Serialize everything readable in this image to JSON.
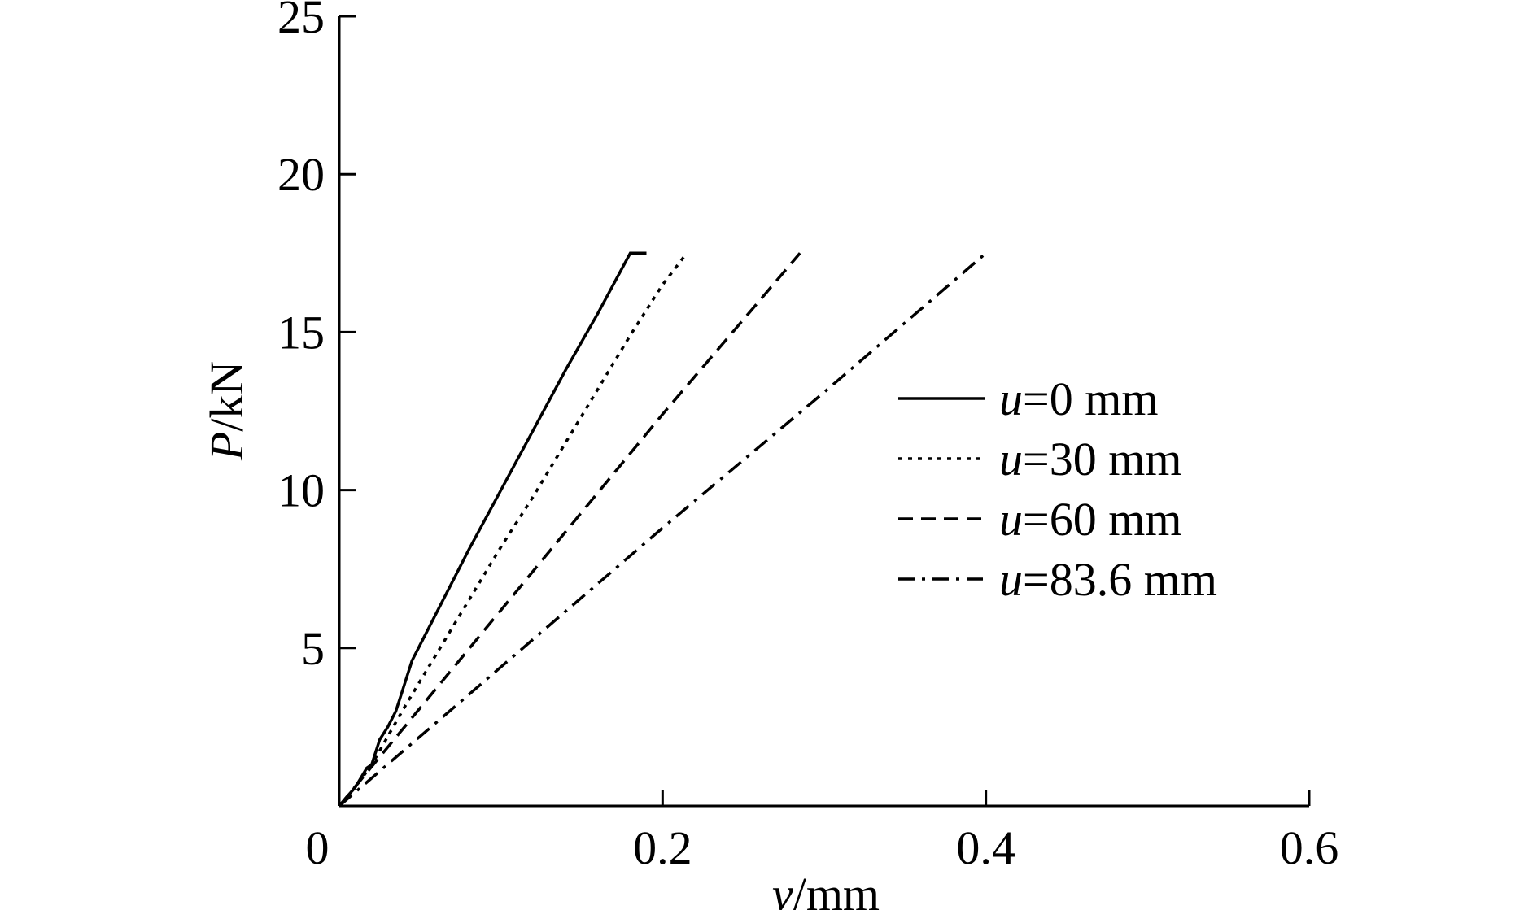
{
  "chart_data": {
    "type": "line",
    "title": "",
    "xlabel_var": "v",
    "xlabel_unit": "/mm",
    "ylabel_var": "P",
    "ylabel_unit": "/kN",
    "xlim": [
      0,
      0.6
    ],
    "ylim": [
      0,
      25
    ],
    "xticks": [
      0,
      0.2,
      0.4,
      0.6
    ],
    "xtick_labels": [
      "0",
      "0.2",
      "0.4",
      "0.6"
    ],
    "yticks": [
      5,
      10,
      15,
      20,
      25
    ],
    "ytick_labels": [
      "5",
      "10",
      "15",
      "20",
      "25"
    ],
    "grid": false,
    "legend_position": "right",
    "series": [
      {
        "name_var": "u",
        "name_value": "=0 mm",
        "style": "solid",
        "x": [
          0,
          0.005,
          0.01,
          0.017,
          0.02,
          0.025,
          0.03,
          0.035,
          0.04,
          0.045,
          0.05,
          0.06,
          0.08,
          0.1,
          0.12,
          0.14,
          0.16,
          0.18,
          0.19
        ],
        "y": [
          0,
          0.3,
          0.6,
          1.2,
          1.3,
          2.1,
          2.5,
          3.0,
          3.8,
          4.6,
          5.1,
          6.1,
          8.1,
          10.0,
          11.9,
          13.8,
          15.6,
          17.5,
          17.5
        ]
      },
      {
        "name_var": "u",
        "name_value": "=30 mm",
        "style": "dotted",
        "x": [
          0,
          0.01,
          0.02,
          0.03,
          0.04,
          0.06,
          0.08,
          0.1,
          0.12,
          0.14,
          0.16,
          0.18,
          0.2,
          0.215
        ],
        "y": [
          0,
          0.6,
          1.3,
          2.2,
          3.1,
          4.8,
          6.5,
          8.2,
          9.8,
          11.5,
          13.2,
          14.9,
          16.5,
          17.5
        ]
      },
      {
        "name_var": "u",
        "name_value": "=60 mm",
        "style": "dashed",
        "x": [
          0,
          0.05,
          0.1,
          0.15,
          0.2,
          0.25,
          0.285
        ],
        "y": [
          0,
          3.1,
          6.2,
          9.3,
          12.4,
          15.4,
          17.5
        ]
      },
      {
        "name_var": "u",
        "name_value": "=83.6 mm",
        "style": "dashdot",
        "x": [
          0,
          0.1,
          0.2,
          0.3,
          0.4
        ],
        "y": [
          0,
          4.4,
          8.8,
          13.1,
          17.5
        ]
      }
    ]
  }
}
